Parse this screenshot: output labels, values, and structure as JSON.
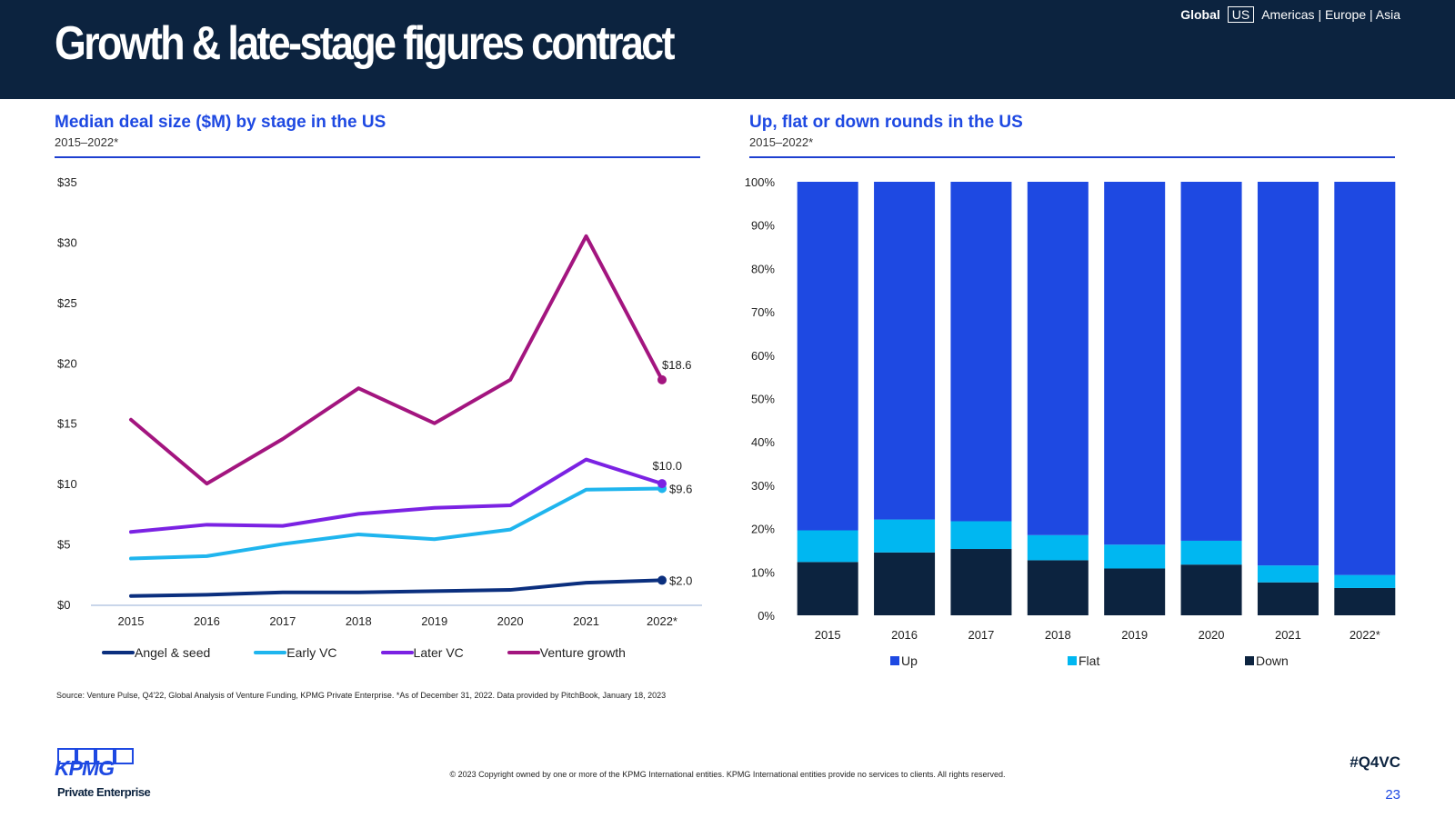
{
  "header": {
    "title": "Growth & late-stage figures contract",
    "nav": {
      "global": "Global",
      "us": "US",
      "rest": "Americas | Europe | Asia"
    }
  },
  "colors": {
    "header_bg": "#0c233f",
    "title_blue": "#1e49e2",
    "angel_seed": "#0b2f7e",
    "early_vc": "#1fb5ee",
    "later_vc": "#7b22e3",
    "venture_growth": "#a3157f",
    "up": "#1e49e2",
    "flat": "#00b7f1",
    "down": "#0c233f"
  },
  "chart_data": [
    {
      "type": "line",
      "title": "Median deal size ($M) by stage in the US",
      "subtitle": "2015–2022*",
      "x": [
        "2015",
        "2016",
        "2017",
        "2018",
        "2019",
        "2020",
        "2021",
        "2022*"
      ],
      "ylim": [
        0,
        35
      ],
      "yticks": [
        0,
        5,
        10,
        15,
        20,
        25,
        30,
        35
      ],
      "ytick_labels": [
        "$0",
        "$5",
        "$10",
        "$15",
        "$20",
        "$25",
        "$30",
        "$35"
      ],
      "grid": false,
      "legend_position": "bottom",
      "series": [
        {
          "name": "Angel & seed",
          "color": "#0b2f7e",
          "values": [
            0.7,
            0.8,
            1.0,
            1.0,
            1.1,
            1.2,
            1.8,
            2.0
          ],
          "end_label": "$2.0"
        },
        {
          "name": "Early VC",
          "color": "#1fb5ee",
          "values": [
            3.8,
            4.0,
            5.0,
            5.8,
            5.4,
            6.2,
            9.5,
            9.6
          ],
          "end_label": "$9.6"
        },
        {
          "name": "Later VC",
          "color": "#7b22e3",
          "values": [
            6.0,
            6.6,
            6.5,
            7.5,
            8.0,
            8.2,
            12.0,
            10.0
          ],
          "end_label": "$10.0"
        },
        {
          "name": "Venture growth",
          "color": "#a3157f",
          "values": [
            15.3,
            10.0,
            13.7,
            17.9,
            15.0,
            18.6,
            30.5,
            18.6
          ],
          "end_label": "$18.6"
        }
      ]
    },
    {
      "type": "bar",
      "stacked": true,
      "title": "Up, flat or down rounds in the US",
      "subtitle": "2015–2022*",
      "categories": [
        "2015",
        "2016",
        "2017",
        "2018",
        "2019",
        "2020",
        "2021",
        "2022*"
      ],
      "ylim": [
        0,
        100
      ],
      "yticks": [
        0,
        10,
        20,
        30,
        40,
        50,
        60,
        70,
        80,
        90,
        100
      ],
      "ytick_labels": [
        "0%",
        "10%",
        "20%",
        "30%",
        "40%",
        "50%",
        "60%",
        "70%",
        "80%",
        "90%",
        "100%"
      ],
      "grid": false,
      "legend_position": "bottom",
      "series": [
        {
          "name": "Down",
          "color": "#0c233f",
          "values": [
            12.3,
            14.5,
            15.3,
            12.7,
            10.8,
            11.7,
            7.6,
            6.3
          ]
        },
        {
          "name": "Flat",
          "color": "#00b7f1",
          "values": [
            7.3,
            7.6,
            6.4,
            5.8,
            5.5,
            5.5,
            3.9,
            3.0
          ]
        },
        {
          "name": "Up",
          "color": "#1e49e2",
          "values": [
            80.4,
            77.9,
            78.3,
            81.5,
            83.7,
            82.8,
            88.5,
            90.7
          ]
        }
      ],
      "legend_order": [
        "Up",
        "Flat",
        "Down"
      ]
    }
  ],
  "footer": {
    "source": "Source: Venture Pulse, Q4'22, Global Analysis of Venture Funding, KPMG Private Enterprise. *As of December 31, 2022. Data provided by PitchBook, January 18, 2023",
    "logo_text": "KPMG",
    "logo_sub": "Private Enterprise",
    "copyright": "© 2023 Copyright owned by one or more of the KPMG International entities. KPMG International entities provide no services to clients. All rights reserved.",
    "hashtag": "#Q4VC",
    "page": "23"
  }
}
